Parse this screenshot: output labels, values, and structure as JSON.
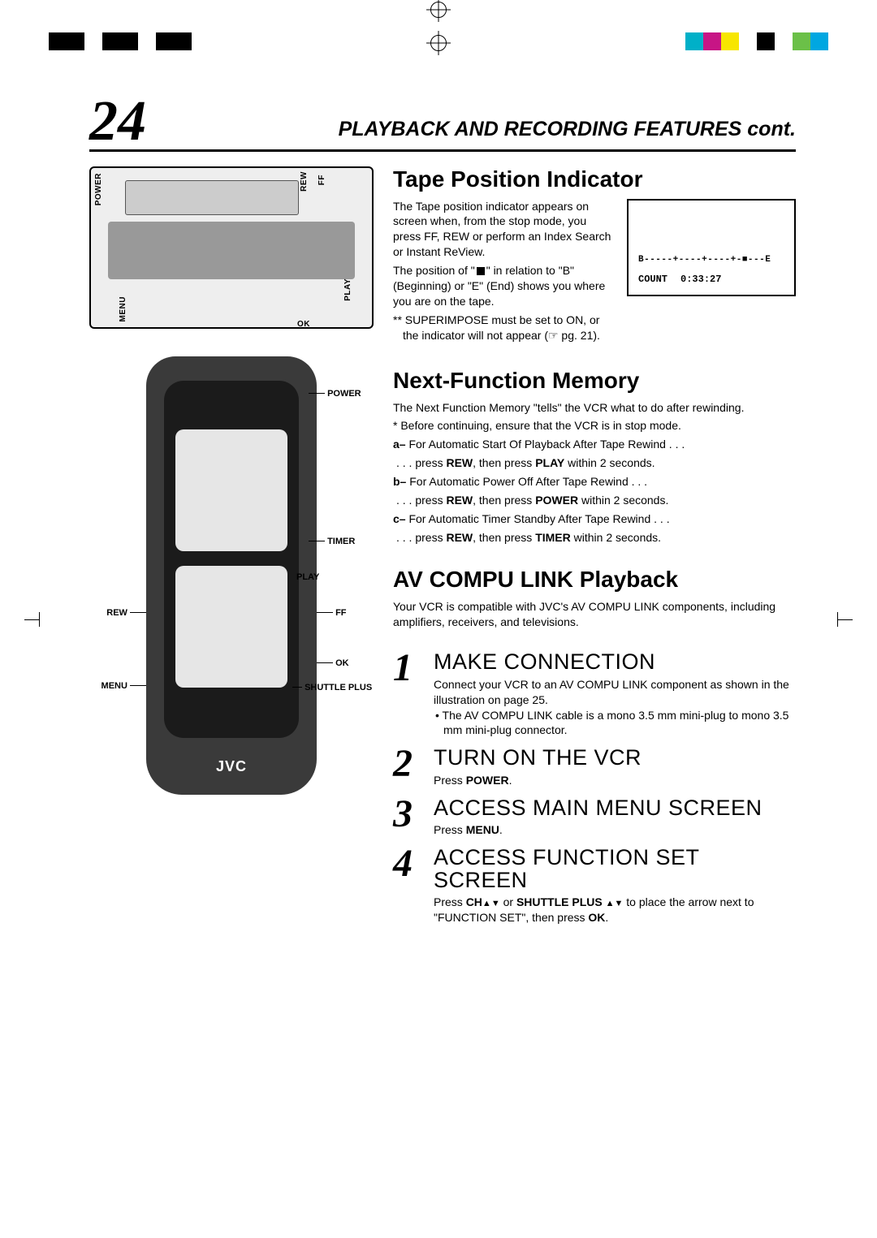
{
  "registration_bar": {
    "left_colors": [
      "#000000",
      "#000000",
      "#ffffff",
      "#000000",
      "#000000",
      "#ffffff",
      "#000000",
      "#000000"
    ],
    "right_colors": [
      "#00b0c8",
      "#c71585",
      "#f7e600",
      "#ffffff",
      "#000000",
      "#ffffff",
      "#6bc048",
      "#00a7e1"
    ]
  },
  "page": {
    "number": "24",
    "title": "PLAYBACK AND RECORDING FEATURES cont."
  },
  "vcr_labels": {
    "power": "POWER",
    "rew": "REW",
    "ff": "FF",
    "play": "PLAY",
    "ok": "OK",
    "menu": "MENU"
  },
  "remote": {
    "brand": "JVC",
    "labels": {
      "power": "POWER",
      "timer": "TIMER",
      "play": "PLAY",
      "ff": "FF",
      "rew": "REW",
      "ok": "OK",
      "menu": "MENU",
      "shuttle_plus": "SHUTTLE PLUS"
    }
  },
  "screen": {
    "pos_line": "B-----+----+----+-■---E",
    "count_label": "COUNT",
    "count_value": "0:33:27"
  },
  "section_tape": {
    "title": "Tape Position Indicator",
    "p1": "The Tape position indicator appears on screen when, from the stop mode, you press FF, REW or perform an Index Search or Instant ReView.",
    "p2a": "The position of \"",
    "p2b": "\" in relation to \"B\" (Beginning) or \"E\" (End) shows you where you are on the tape.",
    "note1": "** SUPERIMPOSE must be set to ON, or the indicator will not appear (☞ pg. 21)."
  },
  "section_next": {
    "title": "Next-Function Memory",
    "p1": "The Next Function Memory \"tells\" the VCR what to do after rewinding.",
    "star": "* Before continuing, ensure that the VCR is in stop mode.",
    "a_label": "a–",
    "a_text": " For Automatic Start Of Playback After Tape Rewind . . .",
    "a_action": ". . . press REW, then press PLAY within 2 seconds.",
    "b_label": "b–",
    "b_text": " For Automatic Power Off After Tape Rewind . . .",
    "b_action": ". . . press REW, then press POWER within 2 seconds.",
    "c_label": "c–",
    "c_text": " For Automatic Timer Standby After Tape Rewind . . .",
    "c_action": ". . . press REW, then press TIMER within 2 seconds."
  },
  "section_av": {
    "title": "AV COMPU LINK Playback",
    "p1": "Your VCR is compatible with JVC's AV COMPU LINK components, including amplifiers, receivers, and televisions."
  },
  "steps": {
    "s1": {
      "num": "1",
      "title": "MAKE CONNECTION",
      "text1": "Connect your VCR to an AV COMPU LINK component as shown in the illustration on page 25.",
      "bullet": "• The AV COMPU LINK cable is a mono 3.5 mm mini-plug to mono 3.5 mm mini-plug connector."
    },
    "s2": {
      "num": "2",
      "title": "TURN ON THE VCR",
      "text_pre": "Press ",
      "text_key": "POWER",
      "text_post": "."
    },
    "s3": {
      "num": "3",
      "title": "ACCESS MAIN MENU SCREEN",
      "text_pre": "Press ",
      "text_key": "MENU",
      "text_post": "."
    },
    "s4": {
      "num": "4",
      "title": "ACCESS FUNCTION SET SCREEN",
      "text_a": "Press ",
      "text_b": "CH",
      "text_c": " or ",
      "text_d": "SHUTTLE PLUS ",
      "text_e": " to place the arrow next to \"FUNCTION SET\", then press ",
      "text_f": "OK",
      "text_g": "."
    }
  }
}
